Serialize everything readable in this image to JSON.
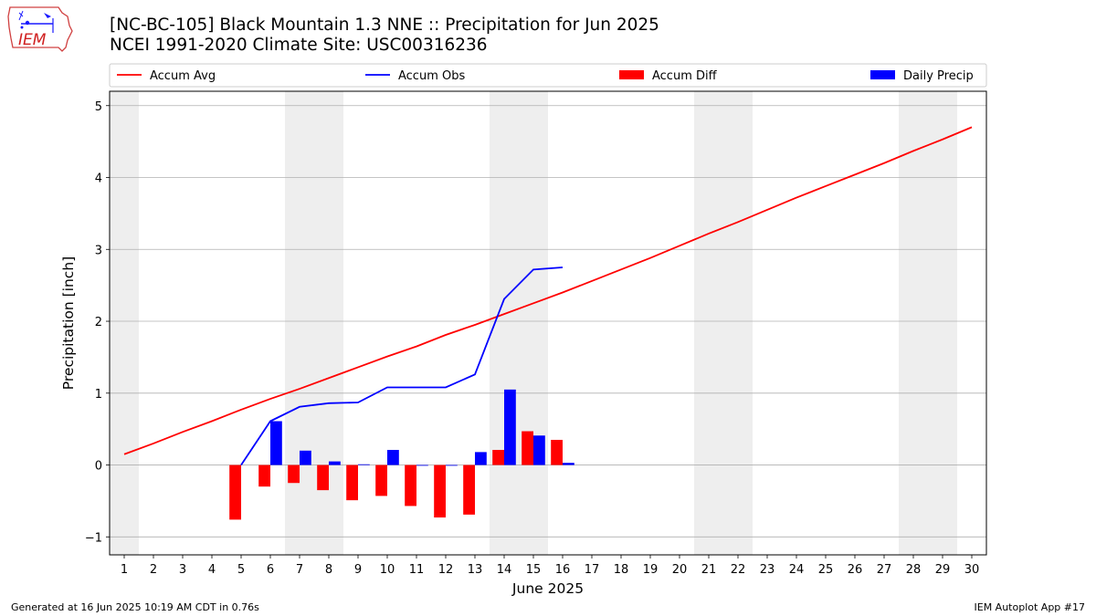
{
  "header": {
    "title_line1": "[NC-BC-105] Black Mountain 1.3 NNE :: Precipitation for Jun 2025",
    "title_line2": "NCEI 1991-2020 Climate Site: USC00316236"
  },
  "logo": {
    "text": "IEM"
  },
  "footer": {
    "left": "Generated at 16 Jun 2025 10:19 AM CDT in 0.76s",
    "right": "IEM Autoplot App #17"
  },
  "chart_data": {
    "type": "bar",
    "xlabel": "June 2025",
    "ylabel": "Precipitation [inch]",
    "xlim": [
      0.5,
      30.5
    ],
    "ylim": [
      -1.25,
      5.2
    ],
    "yticks": [
      -1,
      0,
      1,
      2,
      3,
      4,
      5
    ],
    "grid": "horizontal",
    "legend_placement": "top",
    "weekend_shading": [
      [
        0.5,
        1.5
      ],
      [
        6.5,
        8.5
      ],
      [
        13.5,
        15.5
      ],
      [
        20.5,
        22.5
      ],
      [
        27.5,
        29.5
      ]
    ],
    "colors": {
      "accum_avg": "#ff0000",
      "accum_obs": "#0000ff",
      "accum_diff": "#ff0000",
      "daily_precip": "#0000ff",
      "shade": "#eeeeee",
      "grid": "#b0b0b0"
    },
    "legend": [
      {
        "label": "Accum Avg",
        "kind": "line",
        "color": "#ff0000"
      },
      {
        "label": "Accum Obs",
        "kind": "line",
        "color": "#0000ff"
      },
      {
        "label": "Accum Diff",
        "kind": "bar",
        "color": "#ff0000"
      },
      {
        "label": "Daily Precip",
        "kind": "bar",
        "color": "#0000ff"
      }
    ],
    "x_days": [
      1,
      2,
      3,
      4,
      5,
      6,
      7,
      8,
      9,
      10,
      11,
      12,
      13,
      14,
      15,
      16,
      17,
      18,
      19,
      20,
      21,
      22,
      23,
      24,
      25,
      26,
      27,
      28,
      29,
      30
    ],
    "accum_avg": [
      0.15,
      0.3,
      0.46,
      0.61,
      0.77,
      0.92,
      1.06,
      1.21,
      1.36,
      1.51,
      1.65,
      1.81,
      1.95,
      2.1,
      2.25,
      2.4,
      2.56,
      2.72,
      2.88,
      3.05,
      3.22,
      3.38,
      3.55,
      3.72,
      3.88,
      4.04,
      4.2,
      4.37,
      4.53,
      4.7
    ],
    "accum_obs": {
      "days": [
        5,
        6,
        7,
        8,
        9,
        10,
        11,
        12,
        13,
        14,
        15,
        16
      ],
      "values": [
        0.0,
        0.61,
        0.81,
        0.86,
        0.87,
        1.08,
        1.08,
        1.08,
        1.26,
        2.31,
        2.72,
        2.75
      ]
    },
    "accum_diff": {
      "days": [
        5,
        6,
        7,
        8,
        9,
        10,
        11,
        12,
        13,
        14,
        15,
        16
      ],
      "values": [
        -0.76,
        -0.3,
        -0.25,
        -0.35,
        -0.49,
        -0.43,
        -0.57,
        -0.73,
        -0.69,
        0.21,
        0.47,
        0.35
      ]
    },
    "daily_precip": {
      "days": [
        6,
        7,
        8,
        9,
        10,
        11,
        12,
        13,
        14,
        15,
        16
      ],
      "values": [
        0.61,
        0.2,
        0.05,
        0.01,
        0.21,
        0.0,
        0.0,
        0.18,
        1.05,
        0.41,
        0.03
      ]
    }
  }
}
